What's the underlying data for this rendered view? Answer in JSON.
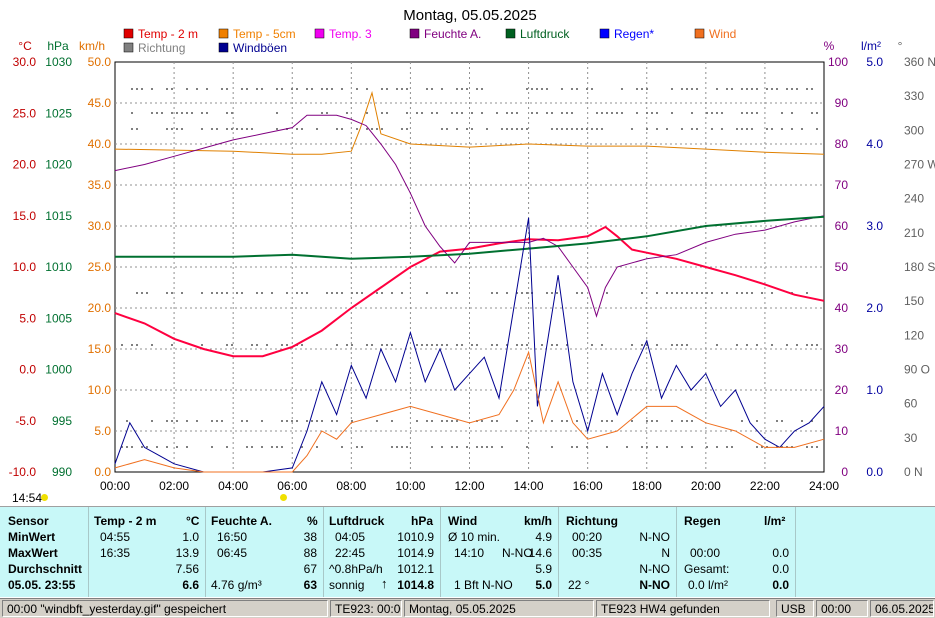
{
  "title": "Montag, 05.05.2025",
  "legend": [
    {
      "label": "Temp - 2 m",
      "color": "#e00000"
    },
    {
      "label": "Temp - 5cm",
      "color": "#f08000"
    },
    {
      "label": "Temp. 3",
      "color": "#f000f0"
    },
    {
      "label": "Feuchte A.",
      "color": "#800080"
    },
    {
      "label": "Luftdruck",
      "color": "#006020"
    },
    {
      "label": "Regen*",
      "color": "#0000ff"
    },
    {
      "label": "Wind",
      "color": "#f07020"
    },
    {
      "label": "Richtung",
      "color": "#808080"
    },
    {
      "label": "Windböen",
      "color": "#000090"
    }
  ],
  "axes": {
    "celsius": {
      "unit": "°C",
      "ticks": [
        "30.0",
        "25.0",
        "20.0",
        "15.0",
        "10.0",
        "5.0",
        "0.0",
        "-5.0",
        "-10.0"
      ],
      "color": "#c00000"
    },
    "hpa": {
      "unit": "hPa",
      "ticks": [
        "1030",
        "1025",
        "1020",
        "1015",
        "1010",
        "1005",
        "1000",
        "995",
        "990"
      ],
      "color": "#007030"
    },
    "kmh": {
      "unit": "km/h",
      "ticks": [
        "50.0",
        "45.0",
        "40.0",
        "35.0",
        "30.0",
        "25.0",
        "20.0",
        "15.0",
        "10.0",
        "5.0",
        "0.0"
      ],
      "color": "#e07000"
    },
    "percent": {
      "unit": "%",
      "ticks": [
        "100",
        "90",
        "80",
        "70",
        "60",
        "50",
        "40",
        "30",
        "20",
        "10",
        "0"
      ],
      "color": "#800080"
    },
    "rain": {
      "unit": "l/m²",
      "ticks": [
        "5.0",
        "4.0",
        "3.0",
        "2.0",
        "1.0",
        "0.0"
      ],
      "color": "#0000a0"
    },
    "deg": {
      "unit": "°",
      "ticks": [
        "360 N",
        "330",
        "300",
        "270 W",
        "240",
        "210",
        "180 S",
        "150",
        "120",
        "90 O",
        "60",
        "30",
        "0 N"
      ],
      "color": "#606060"
    },
    "time": {
      "ticks": [
        "00:00",
        "02:00",
        "04:00",
        "06:00",
        "08:00",
        "10:00",
        "12:00",
        "14:00",
        "16:00",
        "18:00",
        "20:00",
        "22:00",
        "24:00"
      ]
    }
  },
  "current_time": "14:54",
  "chart_data": {
    "type": "line",
    "x_unit": "hours",
    "series": [
      {
        "name": "Temp - 2 m",
        "axis": "celsius",
        "points": [
          [
            0,
            5.5
          ],
          [
            1,
            4.5
          ],
          [
            2,
            3
          ],
          [
            3,
            2
          ],
          [
            4,
            1.3
          ],
          [
            5,
            1.3
          ],
          [
            6,
            2.2
          ],
          [
            7,
            3.8
          ],
          [
            8,
            6
          ],
          [
            9,
            8
          ],
          [
            10,
            10
          ],
          [
            11,
            11.5
          ],
          [
            12,
            11.8
          ],
          [
            13,
            12.3
          ],
          [
            14,
            12.7
          ],
          [
            15,
            12.6
          ],
          [
            16,
            13
          ],
          [
            16.6,
            13.9
          ],
          [
            17,
            13
          ],
          [
            17.5,
            11.7
          ],
          [
            18,
            11.4
          ],
          [
            19,
            10.8
          ],
          [
            20,
            10
          ],
          [
            21,
            9.2
          ],
          [
            22,
            8.3
          ],
          [
            23,
            7.3
          ],
          [
            24,
            6.7
          ]
        ]
      },
      {
        "name": "Temp - 5cm",
        "axis": "celsius",
        "points": [
          [
            0,
            21.5
          ],
          [
            2,
            21.4
          ],
          [
            4,
            21.3
          ],
          [
            6,
            21
          ],
          [
            7,
            21
          ],
          [
            8,
            21.3
          ],
          [
            8.3,
            23.5
          ],
          [
            8.7,
            27
          ],
          [
            9,
            23
          ],
          [
            10,
            22
          ],
          [
            12,
            21.7
          ],
          [
            14,
            22
          ],
          [
            16,
            21.8
          ],
          [
            18,
            21.8
          ],
          [
            20,
            21.5
          ],
          [
            22,
            21.2
          ],
          [
            24,
            21
          ]
        ]
      },
      {
        "name": "Feuchte A.",
        "axis": "percent",
        "points": [
          [
            0,
            73.5
          ],
          [
            1,
            75
          ],
          [
            2,
            77
          ],
          [
            3,
            79
          ],
          [
            4,
            81
          ],
          [
            5,
            82.5
          ],
          [
            6,
            84
          ],
          [
            6.5,
            87
          ],
          [
            7,
            87
          ],
          [
            7.5,
            87
          ],
          [
            8,
            86
          ],
          [
            8.5,
            84.5
          ],
          [
            9,
            80
          ],
          [
            9.5,
            75
          ],
          [
            10,
            68
          ],
          [
            10.5,
            60
          ],
          [
            11,
            55
          ],
          [
            11.5,
            51
          ],
          [
            12,
            56
          ],
          [
            13,
            56
          ],
          [
            14,
            56
          ],
          [
            14.5,
            57
          ],
          [
            15,
            55
          ],
          [
            15.5,
            50
          ],
          [
            16,
            45
          ],
          [
            16.3,
            38
          ],
          [
            16.6,
            45
          ],
          [
            17,
            50
          ],
          [
            18,
            52
          ],
          [
            19,
            53
          ],
          [
            20,
            56
          ],
          [
            21,
            58
          ],
          [
            22,
            59
          ],
          [
            23,
            61
          ],
          [
            24,
            62.5
          ]
        ]
      },
      {
        "name": "Luftdruck",
        "axis": "hpa",
        "points": [
          [
            0,
            1011
          ],
          [
            2,
            1011
          ],
          [
            4,
            1011
          ],
          [
            6,
            1011.2
          ],
          [
            8,
            1010.8
          ],
          [
            10,
            1011
          ],
          [
            12,
            1011.3
          ],
          [
            14,
            1011.8
          ],
          [
            16,
            1012.3
          ],
          [
            18,
            1013
          ],
          [
            20,
            1014
          ],
          [
            22,
            1014.5
          ],
          [
            24,
            1014.9
          ]
        ]
      },
      {
        "name": "Windböen",
        "axis": "kmh",
        "points": [
          [
            0,
            1
          ],
          [
            0.5,
            6
          ],
          [
            1,
            3
          ],
          [
            1.5,
            2
          ],
          [
            2,
            1
          ],
          [
            3,
            0
          ],
          [
            5,
            0
          ],
          [
            6,
            0.5
          ],
          [
            6.5,
            5
          ],
          [
            7,
            11
          ],
          [
            7.5,
            7
          ],
          [
            8,
            13
          ],
          [
            8.5,
            9
          ],
          [
            9,
            15
          ],
          [
            9.5,
            11
          ],
          [
            10,
            17
          ],
          [
            10.5,
            11
          ],
          [
            11,
            15
          ],
          [
            11.5,
            10
          ],
          [
            12,
            12
          ],
          [
            12.5,
            14
          ],
          [
            13,
            9
          ],
          [
            13.5,
            20
          ],
          [
            14,
            31
          ],
          [
            14.3,
            8
          ],
          [
            14.6,
            15
          ],
          [
            15,
            24
          ],
          [
            15.5,
            11
          ],
          [
            16,
            5
          ],
          [
            16.5,
            12
          ],
          [
            17,
            7
          ],
          [
            17.5,
            12
          ],
          [
            18,
            16
          ],
          [
            18.5,
            9
          ],
          [
            19,
            13
          ],
          [
            19.5,
            10
          ],
          [
            20,
            12
          ],
          [
            20.5,
            8
          ],
          [
            21,
            10
          ],
          [
            21.5,
            6
          ],
          [
            22,
            4
          ],
          [
            22.5,
            3
          ],
          [
            23,
            5
          ],
          [
            23.5,
            6
          ],
          [
            24,
            8
          ]
        ]
      },
      {
        "name": "Wind",
        "axis": "kmh",
        "points": [
          [
            0,
            0.5
          ],
          [
            1,
            1.5
          ],
          [
            2,
            0.5
          ],
          [
            3,
            0
          ],
          [
            6,
            0
          ],
          [
            6.5,
            2
          ],
          [
            7,
            5
          ],
          [
            7.5,
            4
          ],
          [
            8,
            6
          ],
          [
            9,
            7
          ],
          [
            10,
            8
          ],
          [
            11,
            7
          ],
          [
            12,
            6
          ],
          [
            13,
            7
          ],
          [
            13.5,
            10
          ],
          [
            14,
            14.6
          ],
          [
            14.5,
            6
          ],
          [
            15,
            11
          ],
          [
            15.5,
            6
          ],
          [
            16,
            4
          ],
          [
            17,
            5
          ],
          [
            18,
            8
          ],
          [
            19,
            8
          ],
          [
            20,
            6
          ],
          [
            21,
            5
          ],
          [
            22,
            3
          ],
          [
            23,
            3
          ],
          [
            24,
            4
          ]
        ]
      }
    ]
  },
  "panel": {
    "sensor": {
      "header": "Sensor",
      "min": "MinWert",
      "max": "MaxWert",
      "avg": "Durchschnitt",
      "now": "05.05. 23:55"
    },
    "temp": {
      "header": "Temp -  2 m",
      "unit": "°C",
      "min_time": "04:55",
      "min_val": "1.0",
      "max_time": "16:35",
      "max_val": "13.9",
      "avg": "7.56",
      "now": "6.6"
    },
    "humidity": {
      "header": "Feuchte A.",
      "unit": "%",
      "min_time": "16:50",
      "min_val": "38",
      "max_time": "06:45",
      "max_val": "88",
      "avg": "67",
      "abs": "4.76 g/m³",
      "now": "63"
    },
    "pressure": {
      "header": "Luftdruck",
      "unit": "hPa",
      "min_time": "04:05",
      "min_val": "1010.9",
      "max_time": "22:45",
      "max_val": "1014.9",
      "trend": "^0.8hPa/h",
      "avg": "1012.1",
      "weather": "sonnig",
      "now": "1014.8"
    },
    "wind": {
      "header": "Wind",
      "unit": "km/h",
      "avg_label": "Ø 10 min.",
      "avg_val": "4.9",
      "max_time": "14:10",
      "max_dir": "N-NO",
      "max_val": "14.6",
      "avg": "5.9",
      "bft": "1 Bft N-NO",
      "now": "5.0"
    },
    "direction": {
      "header": "Richtung",
      "min_time": "00:20",
      "min_val": "N-NO",
      "max_time": "00:35",
      "max_val": "N",
      "avg": "N-NO",
      "deg": "22 °",
      "now": "N-NO"
    },
    "rain": {
      "header": "Regen",
      "unit": "l/m²",
      "max_time": "00:00",
      "max_val": "0.0",
      "total_label": "Gesamt:",
      "total_val": "0.0",
      "rate": "0.0 l/m²",
      "now": "0.0"
    }
  },
  "status": [
    "00:00  \"windbft_yesterday.gif\"  gespeichert",
    "TE923: 00:00",
    "Montag, 05.05.2025",
    "TE923 HW4 gefunden",
    "USB",
    "00:00",
    "06.05.2025"
  ]
}
